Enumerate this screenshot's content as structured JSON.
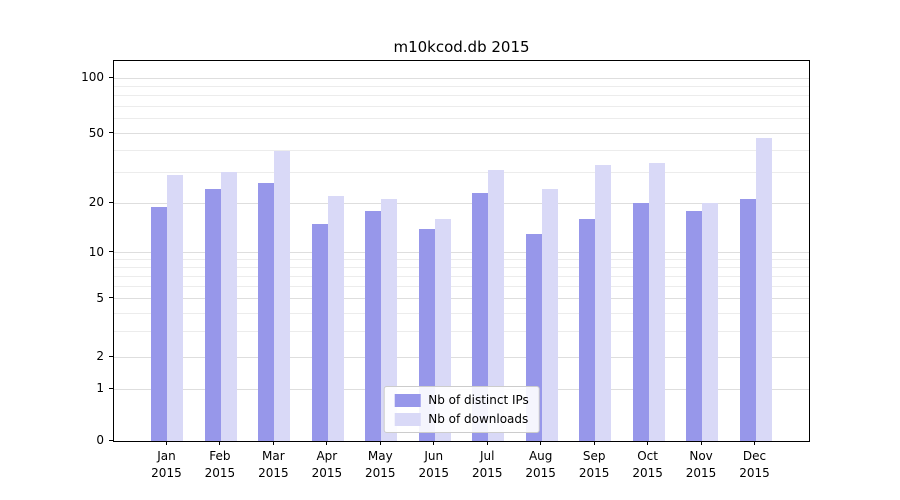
{
  "title": "m10kcod.db 2015",
  "chart_data": {
    "type": "bar",
    "title": "m10kcod.db 2015",
    "categories": [
      "Jan",
      "Feb",
      "Mar",
      "Apr",
      "May",
      "Jun",
      "Jul",
      "Aug",
      "Sep",
      "Oct",
      "Nov",
      "Dec"
    ],
    "category_year": "2015",
    "series": [
      {
        "name": "Nb of distinct IPs",
        "color": "#9797ea",
        "values": [
          19,
          24,
          26,
          15,
          18,
          14,
          23,
          13,
          16,
          20,
          18,
          21
        ]
      },
      {
        "name": "Nb of downloads",
        "color": "#d9d9f7",
        "values": [
          29,
          30,
          40,
          22,
          21,
          16,
          31,
          24,
          33,
          34,
          20,
          47
        ]
      }
    ],
    "yscale": "symlog",
    "yticks": [
      0,
      1,
      2,
      5,
      10,
      20,
      50,
      100
    ],
    "minor_gridlines": [
      3,
      4,
      6,
      7,
      8,
      9,
      30,
      40,
      60,
      70,
      80,
      90
    ],
    "ylim": [
      0,
      110
    ],
    "grid": true,
    "legend_position": "lower center",
    "xlabel": "",
    "ylabel": ""
  },
  "colors": {
    "grid_major": "#dedede",
    "grid_minor": "#ececec",
    "axis": "#000000",
    "legend_border": "#cccccc"
  }
}
